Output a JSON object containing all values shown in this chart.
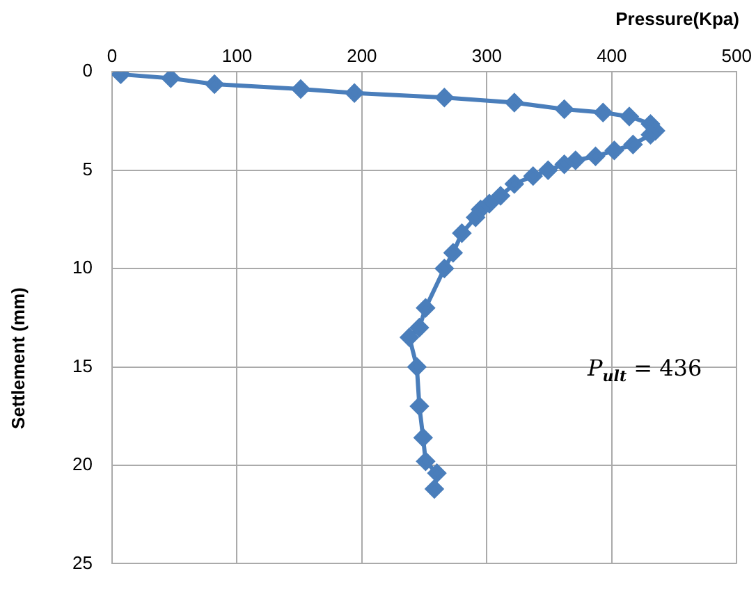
{
  "chart_data": {
    "type": "line",
    "xlabel": "Pressure(Kpa)",
    "ylabel": "Settlement (mm)",
    "x": [
      7,
      47,
      82,
      151,
      194,
      266,
      322,
      362,
      393,
      414,
      431,
      435,
      431,
      417,
      402,
      387,
      371,
      362,
      349,
      337,
      322,
      311,
      302,
      295,
      291,
      280,
      273,
      266,
      251,
      246,
      238,
      244,
      246,
      249,
      251,
      260,
      258
    ],
    "values": [
      0.13,
      0.33,
      0.63,
      0.88,
      1.08,
      1.31,
      1.57,
      1.9,
      2.07,
      2.27,
      2.65,
      3.0,
      3.2,
      3.7,
      4.0,
      4.3,
      4.5,
      4.7,
      5.0,
      5.3,
      5.7,
      6.3,
      6.7,
      7.0,
      7.4,
      8.2,
      9.2,
      10.0,
      12.0,
      13.0,
      13.5,
      15.0,
      17.0,
      18.6,
      19.8,
      20.4,
      21.2
    ],
    "color": "#4a7ebb",
    "marker": "diamond",
    "line_style": "solid",
    "grid": true,
    "legend": false,
    "xlim": [
      0,
      500
    ],
    "xticks": [
      0,
      100,
      200,
      300,
      400,
      500
    ],
    "ylim": [
      25,
      0
    ],
    "yticks": [
      0,
      5,
      10,
      15,
      20,
      25
    ],
    "annotations": [
      "P$_{ult}$ = 436"
    ]
  }
}
